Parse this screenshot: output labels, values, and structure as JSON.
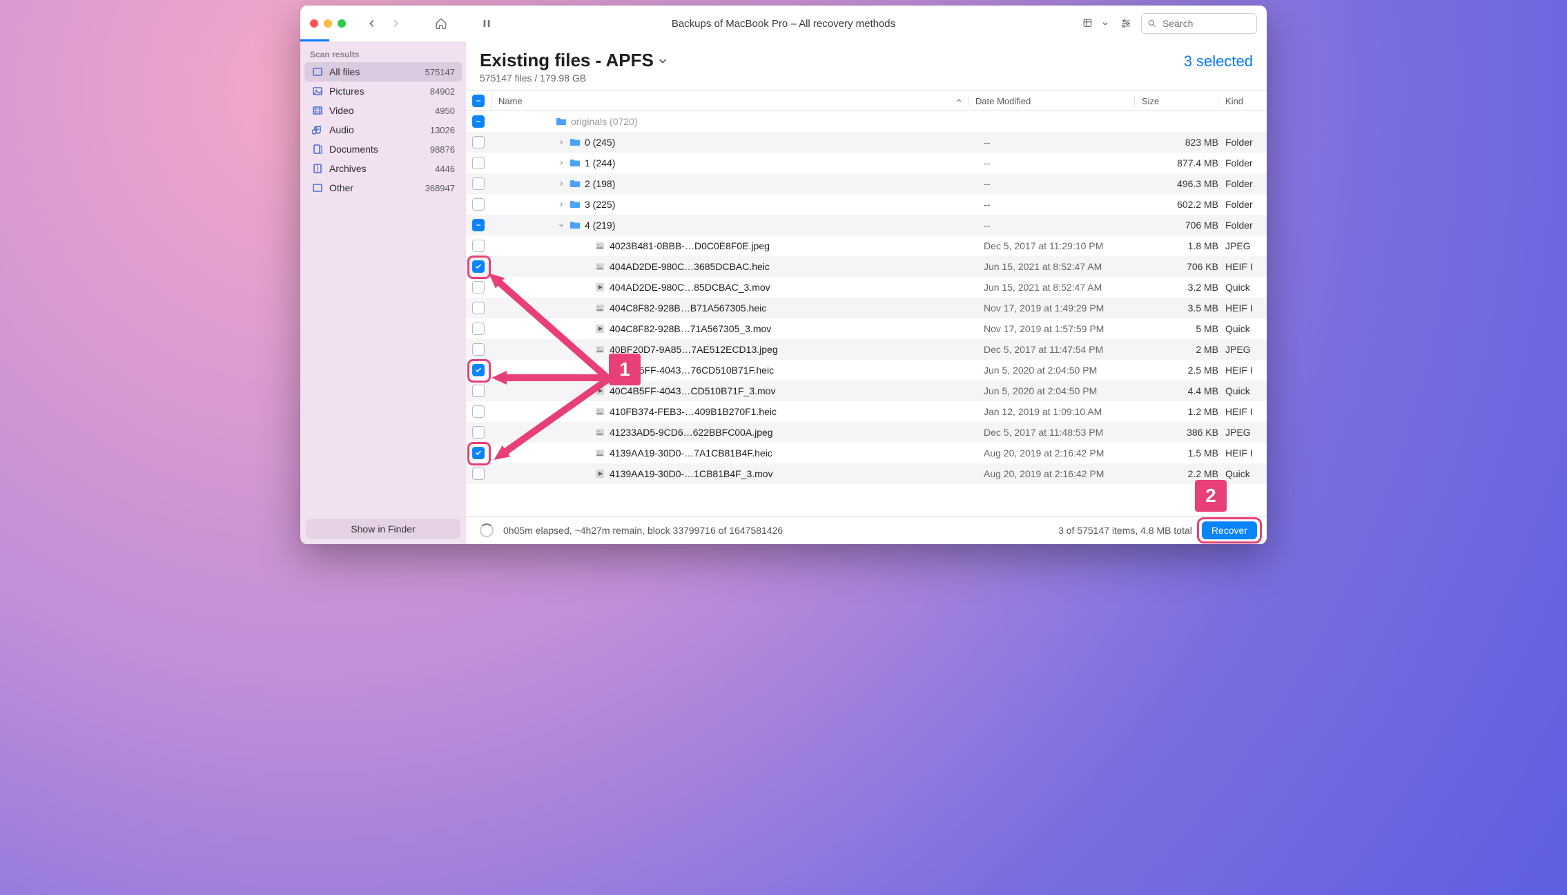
{
  "window": {
    "title": "Backups of MacBook Pro – All recovery methods"
  },
  "toolbar": {
    "search_placeholder": "Search"
  },
  "sidebar": {
    "section_label": "Scan results",
    "items": [
      {
        "label": "All files",
        "count": "575147",
        "icon": "all",
        "active": true
      },
      {
        "label": "Pictures",
        "count": "84902",
        "icon": "pictures",
        "active": false
      },
      {
        "label": "Video",
        "count": "4950",
        "icon": "video",
        "active": false
      },
      {
        "label": "Audio",
        "count": "13026",
        "icon": "audio",
        "active": false
      },
      {
        "label": "Documents",
        "count": "98876",
        "icon": "docs",
        "active": false
      },
      {
        "label": "Archives",
        "count": "4446",
        "icon": "archives",
        "active": false
      },
      {
        "label": "Other",
        "count": "368947",
        "icon": "other",
        "active": false
      }
    ],
    "footer_button": "Show in Finder"
  },
  "main": {
    "title": "Existing files - APFS",
    "subtitle": "575147 files / 179.98 GB",
    "selected_text": "3 selected"
  },
  "table": {
    "headers": {
      "name": "Name",
      "date": "Date Modified",
      "size": "Size",
      "kind": "Kind"
    },
    "header_check_state": "indet"
  },
  "rows": [
    {
      "indent": 3,
      "kind": "folder-partial",
      "name": "originals (0720)",
      "date": "",
      "size": "",
      "kindlabel": "",
      "check": "indet",
      "partial": true
    },
    {
      "indent": 4,
      "kind": "folder",
      "name": "0 (245)",
      "date": "--",
      "size": "823 MB",
      "kindlabel": "Folder",
      "check": "none",
      "disclosure": "right"
    },
    {
      "indent": 4,
      "kind": "folder",
      "name": "1 (244)",
      "date": "--",
      "size": "877.4 MB",
      "kindlabel": "Folder",
      "check": "none",
      "disclosure": "right"
    },
    {
      "indent": 4,
      "kind": "folder",
      "name": "2 (198)",
      "date": "--",
      "size": "496.3 MB",
      "kindlabel": "Folder",
      "check": "none",
      "disclosure": "right"
    },
    {
      "indent": 4,
      "kind": "folder",
      "name": "3 (225)",
      "date": "--",
      "size": "602.2 MB",
      "kindlabel": "Folder",
      "check": "none",
      "disclosure": "right"
    },
    {
      "indent": 4,
      "kind": "folder",
      "name": "4 (219)",
      "date": "--",
      "size": "706 MB",
      "kindlabel": "Folder",
      "check": "indet",
      "disclosure": "down"
    },
    {
      "indent": 5,
      "kind": "jpeg",
      "name": "4023B481-0BBB-…D0C0E8F0E.jpeg",
      "date": "Dec 5, 2017 at 11:29:10 PM",
      "size": "1.8 MB",
      "kindlabel": "JPEG",
      "check": "none"
    },
    {
      "indent": 5,
      "kind": "heic",
      "name": "404AD2DE-980C…3685DCBAC.heic",
      "date": "Jun 15, 2021 at 8:52:47 AM",
      "size": "706 KB",
      "kindlabel": "HEIF I",
      "check": "checked",
      "marker": 1
    },
    {
      "indent": 5,
      "kind": "mov",
      "name": "404AD2DE-980C…85DCBAC_3.mov",
      "date": "Jun 15, 2021 at 8:52:47 AM",
      "size": "3.2 MB",
      "kindlabel": "Quick",
      "check": "none"
    },
    {
      "indent": 5,
      "kind": "heic",
      "name": "404C8F82-928B…B71A567305.heic",
      "date": "Nov 17, 2019 at 1:49:29 PM",
      "size": "3.5 MB",
      "kindlabel": "HEIF I",
      "check": "none"
    },
    {
      "indent": 5,
      "kind": "mov",
      "name": "404C8F82-928B…71A567305_3.mov",
      "date": "Nov 17, 2019 at 1:57:59 PM",
      "size": "5 MB",
      "kindlabel": "Quick",
      "check": "none"
    },
    {
      "indent": 5,
      "kind": "jpeg",
      "name": "40BF20D7-9A85…7AE512ECD13.jpeg",
      "date": "Dec 5, 2017 at 11:47:54 PM",
      "size": "2 MB",
      "kindlabel": "JPEG",
      "check": "none"
    },
    {
      "indent": 5,
      "kind": "heic",
      "name": "40C4B5FF-4043…76CD510B71F.heic",
      "date": "Jun 5, 2020 at 2:04:50 PM",
      "size": "2.5 MB",
      "kindlabel": "HEIF I",
      "check": "checked",
      "marker": 2
    },
    {
      "indent": 5,
      "kind": "mov",
      "name": "40C4B5FF-4043…CD510B71F_3.mov",
      "date": "Jun 5, 2020 at 2:04:50 PM",
      "size": "4.4 MB",
      "kindlabel": "Quick",
      "check": "none"
    },
    {
      "indent": 5,
      "kind": "heic",
      "name": "410FB374-FEB3-…409B1B270F1.heic",
      "date": "Jan 12, 2019 at 1:09:10 AM",
      "size": "1.2 MB",
      "kindlabel": "HEIF I",
      "check": "none"
    },
    {
      "indent": 5,
      "kind": "jpeg",
      "name": "41233AD5-9CD6…622BBFC00A.jpeg",
      "date": "Dec 5, 2017 at 11:48:53 PM",
      "size": "386 KB",
      "kindlabel": "JPEG",
      "check": "none"
    },
    {
      "indent": 5,
      "kind": "heic",
      "name": "4139AA19-30D0-…7A1CB81B4F.heic",
      "date": "Aug 20, 2019 at 2:16:42 PM",
      "size": "1.5 MB",
      "kindlabel": "HEIF I",
      "check": "checked",
      "marker": 3
    },
    {
      "indent": 5,
      "kind": "mov",
      "name": "4139AA19-30D0-…1CB81B4F_3.mov",
      "date": "Aug 20, 2019 at 2:16:42 PM",
      "size": "2.2 MB",
      "kindlabel": "Quick",
      "check": "none"
    }
  ],
  "statusbar": {
    "progress_text": "0h05m elapsed, ~4h27m remain, block 33799716 of 1647581426",
    "total_text": "3 of 575147 items, 4.8 MB total",
    "recover_label": "Recover"
  },
  "annotations": {
    "badge1": "1",
    "badge2": "2",
    "colors": {
      "pink": "#e83f77"
    }
  }
}
